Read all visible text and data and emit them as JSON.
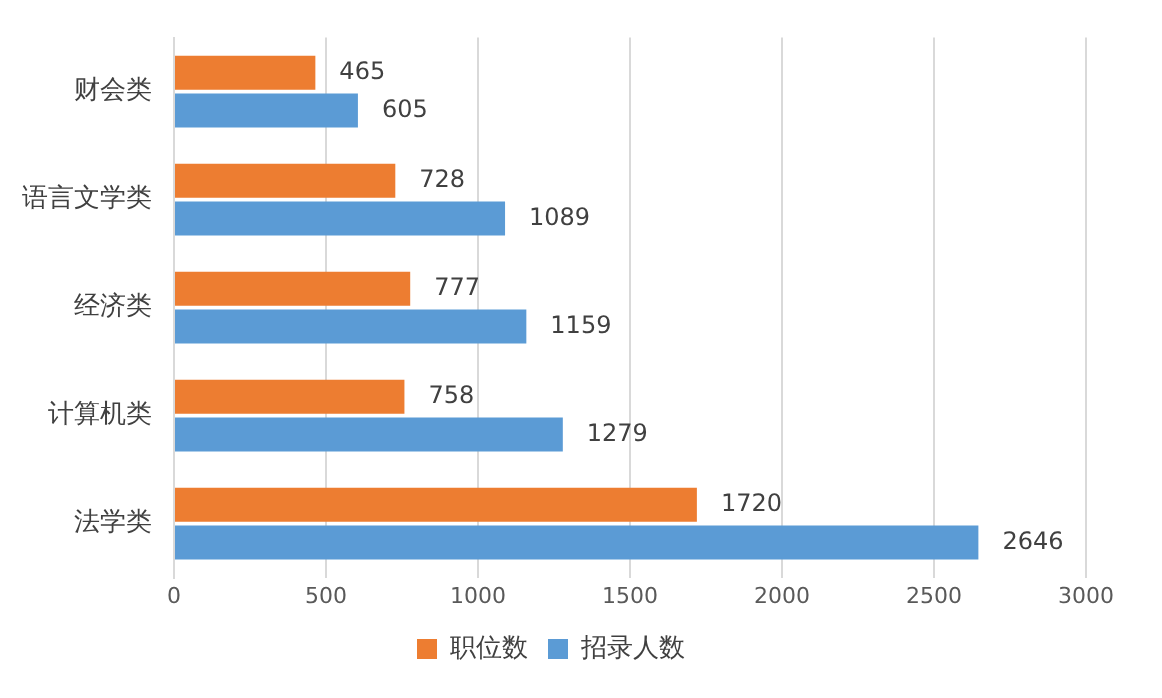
{
  "chart_data": {
    "type": "bar",
    "orientation": "horizontal",
    "categories": [
      "财会类",
      "语言文学类",
      "经济类",
      "计算机类",
      "法学类"
    ],
    "series": [
      {
        "name": "职位数",
        "color": "#ed7d31",
        "values": [
          465,
          728,
          777,
          758,
          1720
        ]
      },
      {
        "name": "招录人数",
        "color": "#5b9bd5",
        "values": [
          605,
          1089,
          1159,
          1279,
          2646
        ]
      }
    ],
    "xlim": [
      0,
      3000
    ],
    "xticks": [
      0,
      500,
      1000,
      1500,
      2000,
      2500,
      3000
    ],
    "grid": "x",
    "legend": "bottom",
    "data_labels": true
  }
}
